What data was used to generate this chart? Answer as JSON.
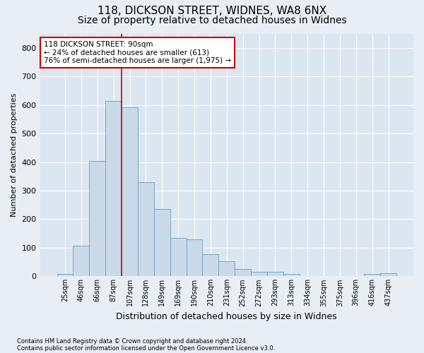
{
  "title1": "118, DICKSON STREET, WIDNES, WA8 6NX",
  "title2": "Size of property relative to detached houses in Widnes",
  "xlabel": "Distribution of detached houses by size in Widnes",
  "ylabel": "Number of detached properties",
  "footer1": "Contains HM Land Registry data © Crown copyright and database right 2024.",
  "footer2": "Contains public sector information licensed under the Open Government Licence v3.0.",
  "bar_labels": [
    "25sqm",
    "46sqm",
    "66sqm",
    "87sqm",
    "107sqm",
    "128sqm",
    "149sqm",
    "169sqm",
    "190sqm",
    "210sqm",
    "231sqm",
    "252sqm",
    "272sqm",
    "293sqm",
    "313sqm",
    "334sqm",
    "355sqm",
    "375sqm",
    "396sqm",
    "416sqm",
    "437sqm"
  ],
  "bar_values": [
    8,
    107,
    405,
    615,
    591,
    330,
    237,
    135,
    130,
    78,
    53,
    25,
    15,
    17,
    8,
    0,
    0,
    0,
    0,
    8,
    10
  ],
  "bar_color": "#c9d9e8",
  "bar_edge_color": "#6a9fc0",
  "vline_x_index": 3,
  "vline_color": "#cc0000",
  "annotation_line1": "118 DICKSON STREET: 90sqm",
  "annotation_line2": "← 24% of detached houses are smaller (613)",
  "annotation_line3": "76% of semi-detached houses are larger (1,975) →",
  "annotation_box_color": "#ffffff",
  "annotation_box_edge": "#cc0000",
  "ylim": [
    0,
    850
  ],
  "yticks": [
    0,
    100,
    200,
    300,
    400,
    500,
    600,
    700,
    800
  ],
  "background_color": "#e8eef4",
  "plot_bg_color": "#dce6f0",
  "grid_color": "#ffffff",
  "title1_fontsize": 11,
  "title2_fontsize": 10,
  "xlabel_fontsize": 9,
  "ylabel_fontsize": 8,
  "tick_fontsize": 7,
  "footer_fontsize": 6
}
